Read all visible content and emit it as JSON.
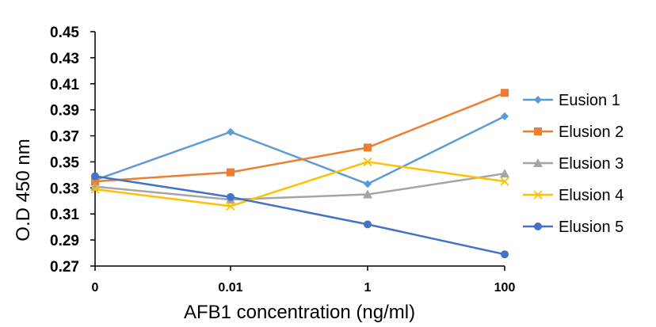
{
  "chart_data": {
    "type": "line",
    "categories": [
      "0",
      "0.01",
      "1",
      "100"
    ],
    "xlabel": "AFB1 concentration (ng/ml)",
    "ylabel": "O.D 450 nm",
    "ylim": [
      0.27,
      0.45
    ],
    "yticks": [
      "0.45",
      "0.43",
      "0.41",
      "0.39",
      "0.37",
      "0.35",
      "0.33",
      "0.31",
      "0.29",
      "0.27"
    ],
    "grid": false,
    "legend_position": "right",
    "series": [
      {
        "name": "Eusion 1",
        "values": [
          0.336,
          0.373,
          0.333,
          0.385
        ],
        "color": "#5B9BD5",
        "marker": "diamond"
      },
      {
        "name": "Elusion 2",
        "values": [
          0.335,
          0.342,
          0.361,
          0.403
        ],
        "color": "#ED7D31",
        "marker": "square"
      },
      {
        "name": "Elusion 3",
        "values": [
          0.331,
          0.321,
          0.325,
          0.341
        ],
        "color": "#A5A5A5",
        "marker": "triangle"
      },
      {
        "name": "Elusion 4",
        "values": [
          0.329,
          0.316,
          0.35,
          0.335
        ],
        "color": "#FFC000",
        "marker": "x"
      },
      {
        "name": "Elusion 5",
        "values": [
          0.339,
          0.323,
          0.302,
          0.279
        ],
        "color": "#4472C4",
        "marker": "circle"
      }
    ]
  }
}
